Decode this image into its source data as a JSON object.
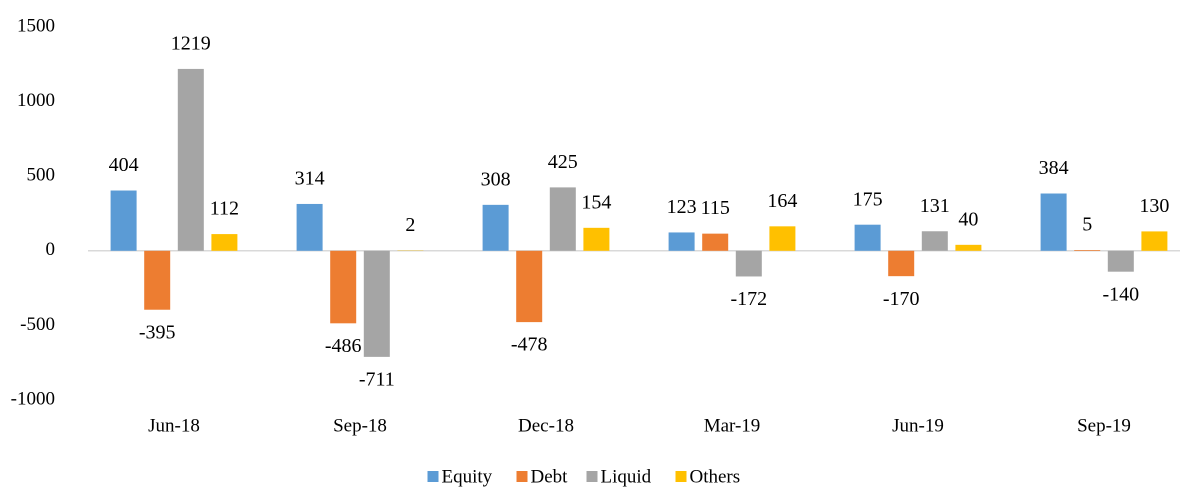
{
  "chart_data": {
    "type": "bar",
    "categories": [
      "Jun-18",
      "Sep-18",
      "Dec-18",
      "Mar-19",
      "Jun-19",
      "Sep-19"
    ],
    "series": [
      {
        "name": "Equity",
        "color": "#5b9bd5",
        "values": [
          404,
          314,
          308,
          123,
          175,
          384
        ]
      },
      {
        "name": "Debt",
        "color": "#ed7d31",
        "values": [
          -395,
          -486,
          -478,
          115,
          -170,
          5
        ]
      },
      {
        "name": "Liquid",
        "color": "#a5a5a5",
        "values": [
          1219,
          -711,
          425,
          -172,
          131,
          -140
        ]
      },
      {
        "name": "Others",
        "color": "#ffc000",
        "values": [
          112,
          2,
          154,
          164,
          40,
          130
        ]
      }
    ],
    "ylim": [
      -1000,
      1500
    ],
    "yticks": [
      -1000,
      -500,
      0,
      500,
      1000,
      1500
    ],
    "grid": false,
    "legend": "bottom"
  }
}
